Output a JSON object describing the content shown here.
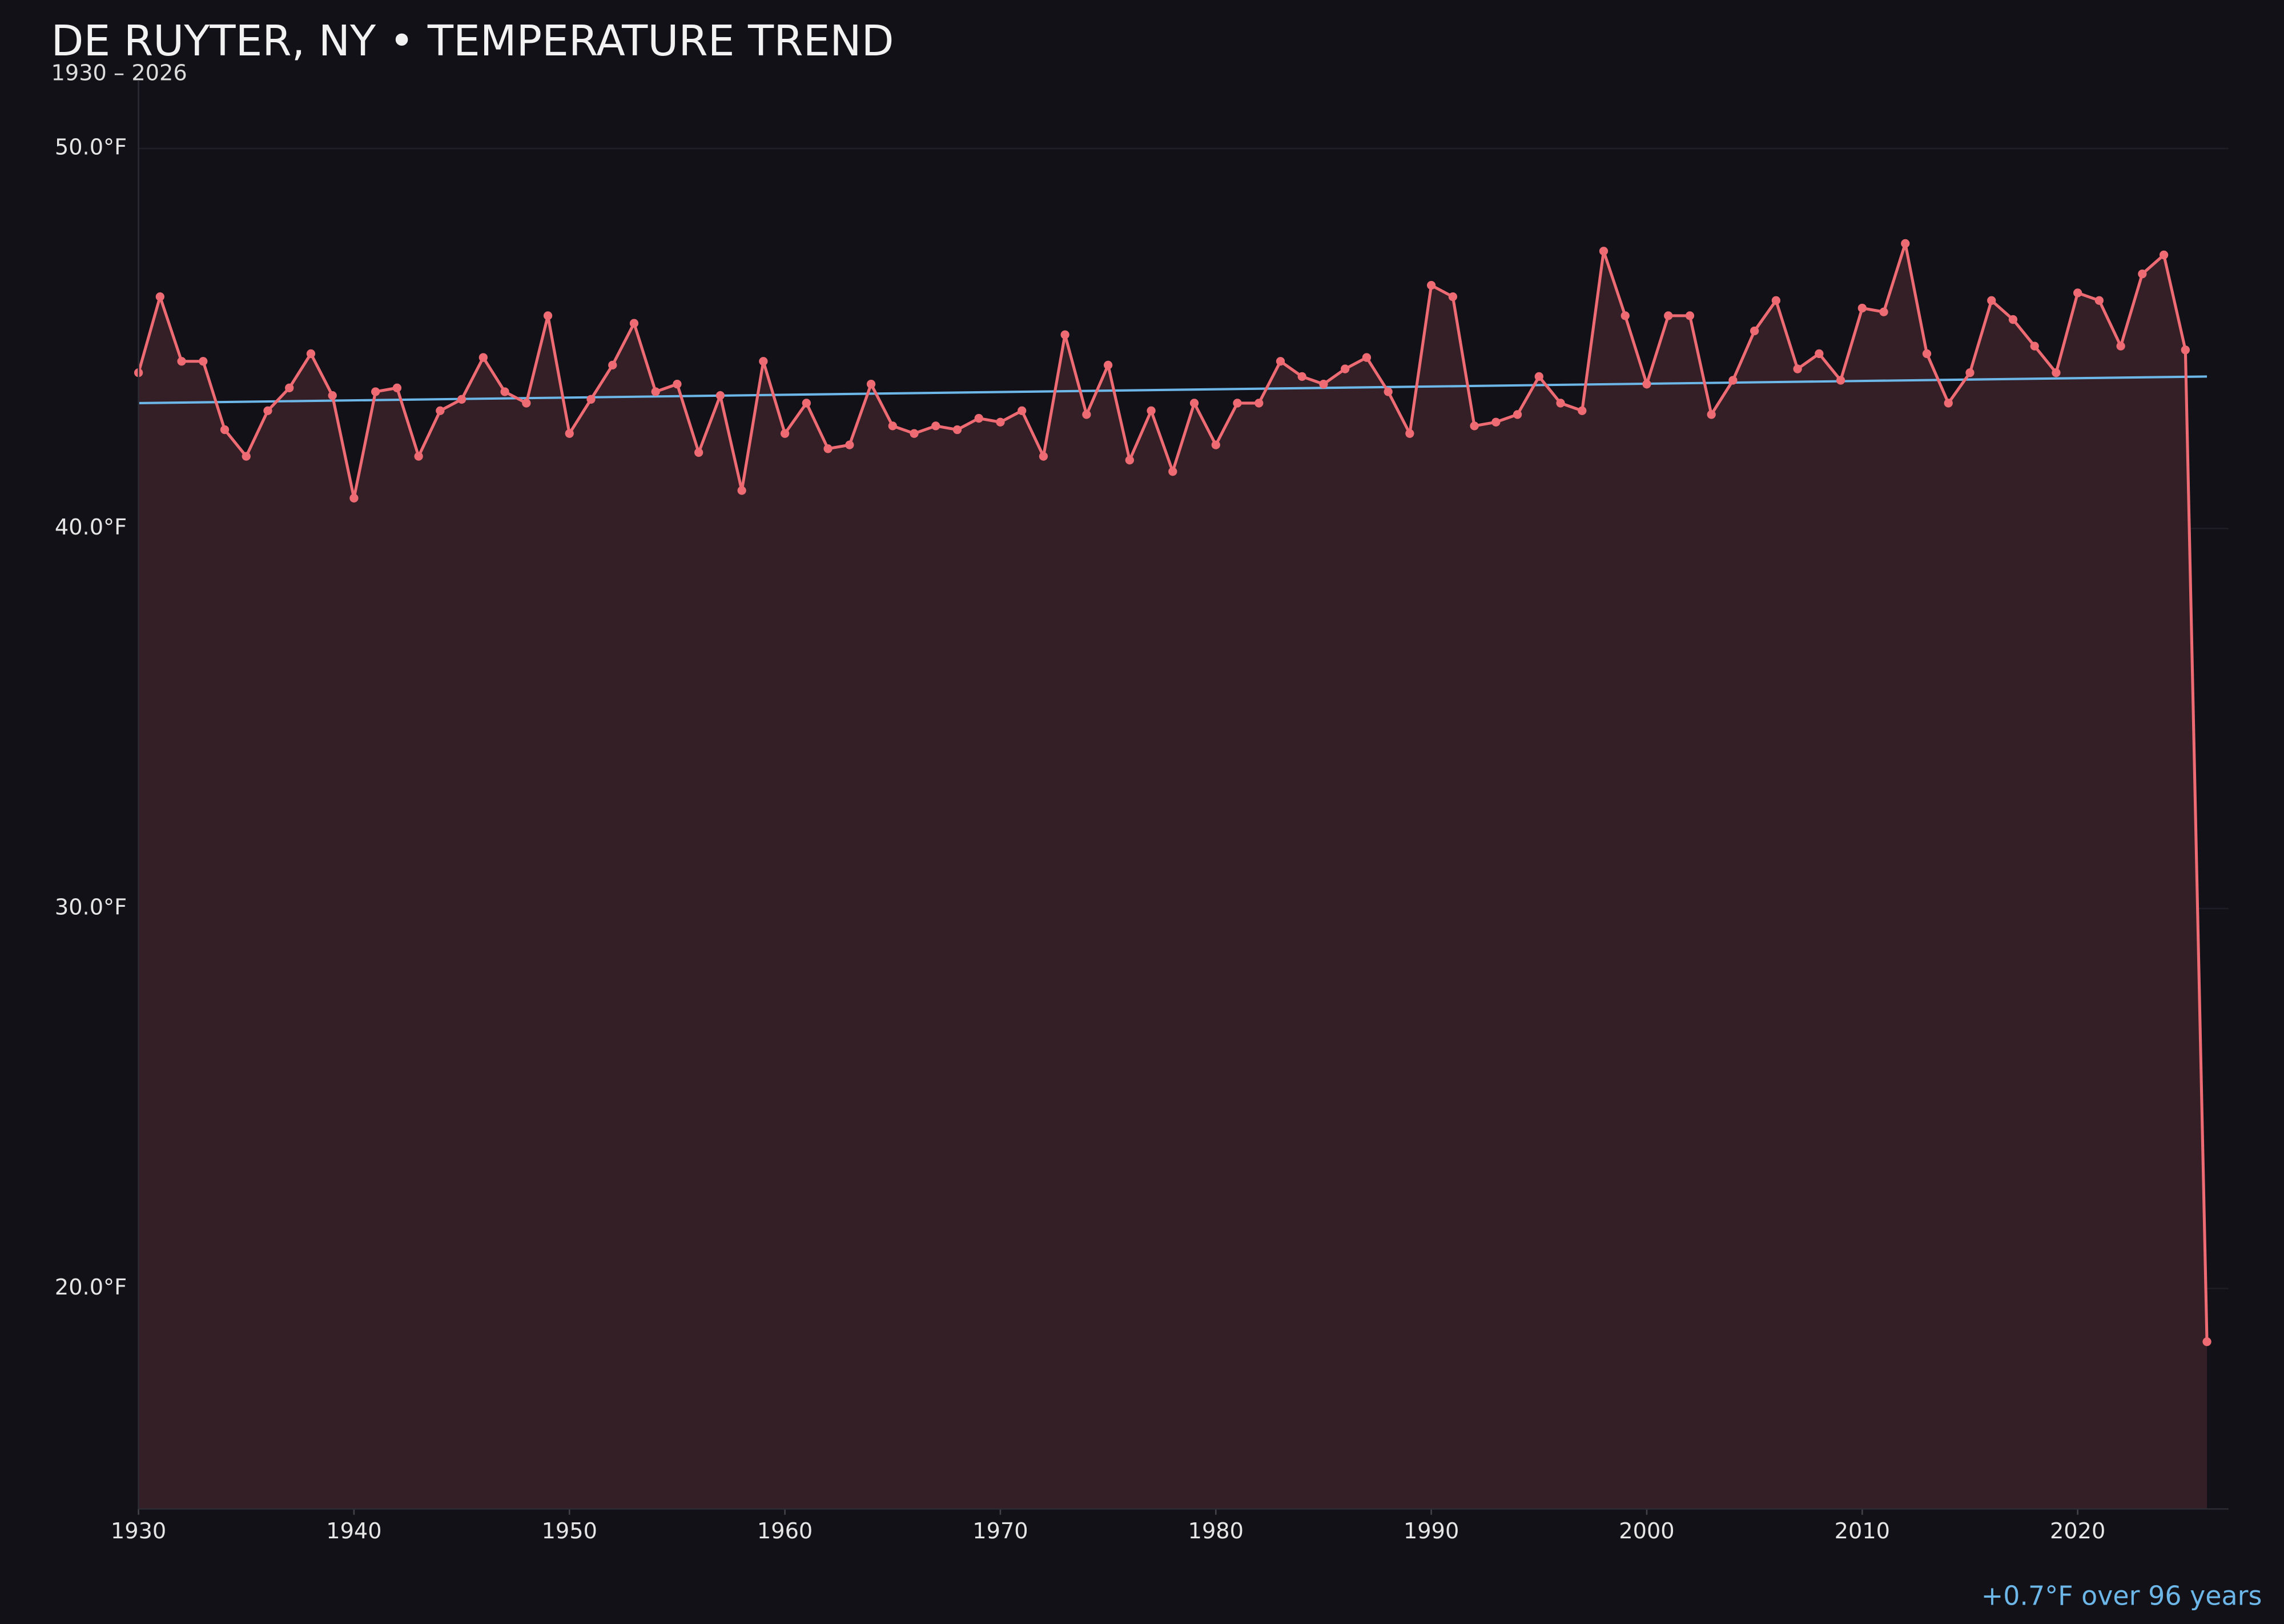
{
  "chart_data": {
    "type": "line",
    "title": "DE RUYTER, NY • TEMPERATURE TREND",
    "subtitle": "1930 – 2026",
    "annotation": "+0.7°F over 96 years",
    "x": [
      1930,
      1931,
      1932,
      1933,
      1934,
      1935,
      1936,
      1937,
      1938,
      1939,
      1940,
      1941,
      1942,
      1943,
      1944,
      1945,
      1946,
      1947,
      1948,
      1949,
      1950,
      1951,
      1952,
      1953,
      1954,
      1955,
      1956,
      1957,
      1958,
      1959,
      1960,
      1961,
      1962,
      1963,
      1964,
      1965,
      1966,
      1967,
      1968,
      1969,
      1970,
      1971,
      1972,
      1973,
      1974,
      1975,
      1976,
      1977,
      1978,
      1979,
      1980,
      1981,
      1982,
      1983,
      1984,
      1985,
      1986,
      1987,
      1988,
      1989,
      1990,
      1991,
      1992,
      1993,
      1994,
      1995,
      1996,
      1997,
      1998,
      1999,
      2000,
      2001,
      2002,
      2003,
      2004,
      2005,
      2006,
      2007,
      2008,
      2009,
      2010,
      2011,
      2012,
      2013,
      2014,
      2015,
      2016,
      2017,
      2018,
      2019,
      2020,
      2021,
      2022,
      2023,
      2024,
      2025,
      2026
    ],
    "series": [
      {
        "color": "#ee6b73",
        "fill": "#331f25",
        "values": [
          44.1,
          46.1,
          44.4,
          44.4,
          42.6,
          41.9,
          43.1,
          43.7,
          44.6,
          43.5,
          40.8,
          43.6,
          43.7,
          41.9,
          43.1,
          43.4,
          44.5,
          43.6,
          43.3,
          45.6,
          42.5,
          43.4,
          44.3,
          45.4,
          43.6,
          43.8,
          42.0,
          43.5,
          41.0,
          44.4,
          42.5,
          43.3,
          42.1,
          42.2,
          43.8,
          42.7,
          42.5,
          42.7,
          42.6,
          42.9,
          42.8,
          43.1,
          41.9,
          45.1,
          43.0,
          44.3,
          41.8,
          43.1,
          41.5,
          43.3,
          42.2,
          43.3,
          43.3,
          44.4,
          44.0,
          43.8,
          44.2,
          44.5,
          43.6,
          42.5,
          46.4,
          46.1,
          42.7,
          42.8,
          43.0,
          44.0,
          43.3,
          43.1,
          47.3,
          45.6,
          43.8,
          45.6,
          45.6,
          43.0,
          43.9,
          45.2,
          46.0,
          44.2,
          44.6,
          43.9,
          45.8,
          45.7,
          47.5,
          44.6,
          43.3,
          44.1,
          46.0,
          45.5,
          44.8,
          44.1,
          46.2,
          46.0,
          44.8,
          46.7,
          47.2,
          44.7,
          18.6
        ]
      }
    ],
    "trend": {
      "color": "#6cb6e8",
      "x": [
        1930,
        2026
      ],
      "values": [
        43.3,
        44.0
      ]
    },
    "xlim": [
      1930,
      2027
    ],
    "xticks": [
      1930,
      1940,
      1950,
      1960,
      1970,
      1980,
      1990,
      2000,
      2010,
      2020
    ],
    "ylim": [
      14.2,
      51.8
    ],
    "yticks": [
      {
        "value": 20,
        "label": "20.0°F"
      },
      {
        "value": 30,
        "label": "30.0°F"
      },
      {
        "value": 40,
        "label": "40.0°F"
      },
      {
        "value": 50,
        "label": "50.0°F"
      }
    ],
    "grid": true
  }
}
